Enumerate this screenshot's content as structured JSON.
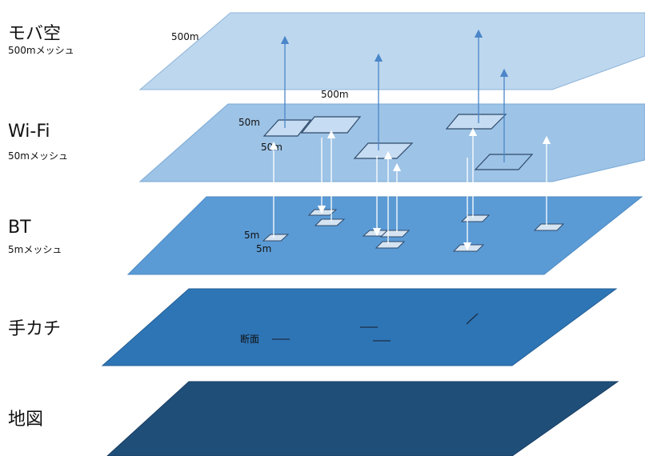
{
  "layers": [
    {
      "title": "モバ空",
      "subtitle": "500mメッシュ",
      "color": "#bdd7ee"
    },
    {
      "title": "Wi-Fi",
      "subtitle": "50mメッシュ",
      "color": "#9dc3e6"
    },
    {
      "title": "BT",
      "subtitle": "5mメッシュ",
      "color": "#5b9bd5"
    },
    {
      "title": "手カチ",
      "subtitle": "",
      "color": "#2e75b6"
    },
    {
      "title": "地図",
      "subtitle": "",
      "color": "#1f4e79"
    }
  ],
  "annotations": {
    "mesh500_top": "500m",
    "mesh500_bottom": "500m",
    "mesh50_side": "50m",
    "mesh50_bottom": "50m",
    "mesh5_side": "5m",
    "mesh5_bottom": "5m",
    "section": "断面"
  },
  "colors": {
    "mesh_cell_50": "#c5dcf2",
    "mesh_cell_5": "#d6e4f2",
    "arrow_up": "#4a86c8",
    "arrow_white": "#ffffff",
    "mesh_border": "#2f4a6a"
  }
}
